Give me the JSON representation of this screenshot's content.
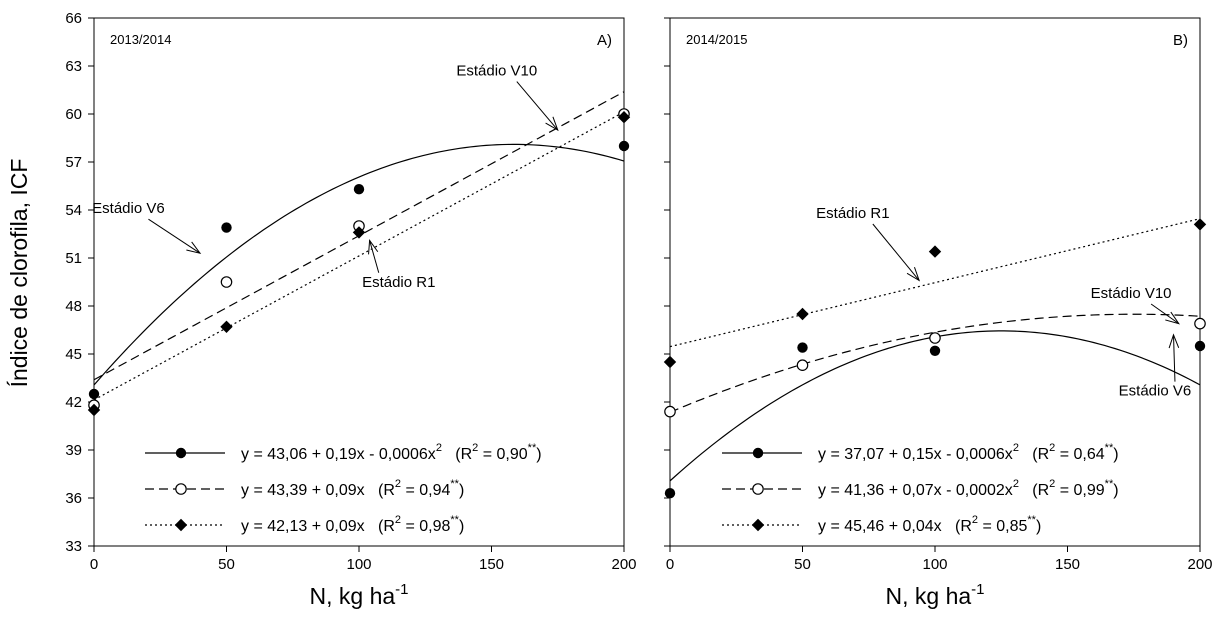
{
  "chart_data": [
    {
      "type": "scatter",
      "panel_label": "A)",
      "season": "2013/2014",
      "xlabel": "N, kg ha",
      "xlabel_sup": "-1",
      "ylabel": "Índice de clorofila, ICF",
      "xlim": [
        0,
        200
      ],
      "ylim": [
        33,
        66
      ],
      "x_ticks": [
        "0",
        "50",
        "100",
        "150",
        "200"
      ],
      "y_ticks": [
        "33",
        "36",
        "39",
        "42",
        "45",
        "48",
        "51",
        "54",
        "57",
        "60",
        "63",
        "66"
      ],
      "series": [
        {
          "name": "Estádio V6",
          "marker": "filled-circle",
          "line": "solid",
          "x": [
            0,
            50,
            100,
            200
          ],
          "y": [
            42.5,
            52.9,
            55.3,
            58.0
          ],
          "fit": {
            "c": 43.06,
            "b": 0.19,
            "a": -0.0006
          },
          "equation": "y = 43,06 + 0,19x - 0,0006x",
          "eq_power": "2",
          "r2_label": "(R",
          "r2_sup": "2",
          "r2_value": " = 0,90",
          "r2_star": "**",
          "r2_close": ")"
        },
        {
          "name": "Estádio V10",
          "marker": "open-circle",
          "line": "dashed",
          "x": [
            0,
            50,
            100,
            200
          ],
          "y": [
            41.8,
            49.5,
            53.0,
            60.0
          ],
          "fit": {
            "c": 43.39,
            "b": 0.09,
            "a": 0
          },
          "equation": "y = 43,39 + 0,09x",
          "eq_power": "",
          "r2_label": "(R",
          "r2_sup": "2",
          "r2_value": " = 0,94",
          "r2_star": "**",
          "r2_close": ")"
        },
        {
          "name": "Estádio R1",
          "marker": "filled-diamond",
          "line": "dotted",
          "x": [
            0,
            50,
            100,
            200
          ],
          "y": [
            41.5,
            46.7,
            52.6,
            59.8
          ],
          "fit": {
            "c": 42.13,
            "b": 0.09,
            "a": 0
          },
          "equation": "y = 42,13 + 0,09x",
          "eq_power": "",
          "r2_label": "(R",
          "r2_sup": "2",
          "r2_value": " = 0,98",
          "r2_star": "**",
          "r2_close": ")"
        }
      ],
      "annotations": [
        {
          "text": "Estádio V6",
          "x": 13,
          "y": 53.8,
          "ax": 40,
          "ay": 51.3
        },
        {
          "text": "Estádio V10",
          "x": 152,
          "y": 62.4,
          "ax": 175,
          "ay": 59.0
        },
        {
          "text": "Estádio R1",
          "x": 115,
          "y": 49.2,
          "ax": 104,
          "ay": 52.1
        }
      ]
    },
    {
      "type": "scatter",
      "panel_label": "B)",
      "season": "2014/2015",
      "xlabel": "N, kg ha",
      "xlabel_sup": "-1",
      "ylabel": "",
      "xlim": [
        0,
        200
      ],
      "ylim": [
        33,
        66
      ],
      "x_ticks": [
        "0",
        "50",
        "100",
        "150",
        "200"
      ],
      "y_ticks": [],
      "series": [
        {
          "name": "Estádio V6",
          "marker": "filled-circle",
          "line": "solid",
          "x": [
            0,
            50,
            100,
            200
          ],
          "y": [
            36.3,
            45.4,
            45.2,
            45.5
          ],
          "fit": {
            "c": 37.07,
            "b": 0.15,
            "a": -0.0006
          },
          "equation": "y = 37,07 + 0,15x - 0,0006x",
          "eq_power": "2",
          "r2_label": "(R",
          "r2_sup": "2",
          "r2_value": " = 0,64",
          "r2_star": "**",
          "r2_close": ")"
        },
        {
          "name": "Estádio V10",
          "marker": "open-circle",
          "line": "dashed",
          "x": [
            0,
            50,
            100,
            200
          ],
          "y": [
            41.4,
            44.3,
            46.0,
            46.9
          ],
          "fit": {
            "c": 41.36,
            "b": 0.07,
            "a": -0.0002
          },
          "equation": "y = 41,36 + 0,07x - 0,0002x",
          "eq_power": "2",
          "r2_label": "(R",
          "r2_sup": "2",
          "r2_value": " = 0,99",
          "r2_star": "**",
          "r2_close": ")"
        },
        {
          "name": "Estádio R1",
          "marker": "filled-diamond",
          "line": "dotted",
          "x": [
            0,
            50,
            100,
            200
          ],
          "y": [
            44.5,
            47.5,
            51.4,
            53.1
          ],
          "fit": {
            "c": 45.46,
            "b": 0.04,
            "a": 0
          },
          "equation": "y = 45,46 + 0,04x",
          "eq_power": "",
          "r2_label": "(R",
          "r2_sup": "2",
          "r2_value": " = 0,85",
          "r2_star": "**",
          "r2_close": ")"
        }
      ],
      "annotations": [
        {
          "text": "Estádio R1",
          "x": 69,
          "y": 53.5,
          "ax": 94,
          "ay": 49.6
        },
        {
          "text": "Estádio V10",
          "x": 174,
          "y": 48.5,
          "ax": 192,
          "ay": 46.9
        },
        {
          "text": "Estádio V6",
          "x": 183,
          "y": 42.4,
          "ax": 190,
          "ay": 46.2
        }
      ]
    }
  ]
}
